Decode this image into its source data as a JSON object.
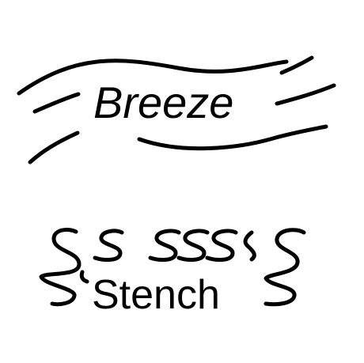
{
  "breeze_label": "Breeze",
  "stench_label": "Stench",
  "icons": {
    "breeze": "wind-lines-icon",
    "stench": "odor-squiggles-icon"
  },
  "colors": {
    "ink": "#000000",
    "background": "#ffffff"
  }
}
